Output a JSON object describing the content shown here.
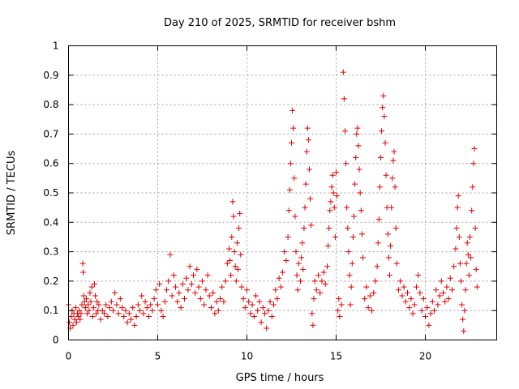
{
  "chart_data": {
    "type": "scatter",
    "title": "Day 210 of 2025, SRMTID for receiver bshm",
    "xlabel": "GPS time / hours",
    "ylabel": "SRMTID / TECUs",
    "xlim": [
      0,
      24
    ],
    "ylim": [
      0,
      1
    ],
    "x_ticks": [
      0,
      5,
      10,
      15,
      20
    ],
    "x_tick_labels": [
      "0",
      "5",
      "10",
      "15",
      "20"
    ],
    "y_ticks": [
      0,
      0.1,
      0.2,
      0.3,
      0.4,
      0.5,
      0.6,
      0.7,
      0.8,
      0.9,
      1
    ],
    "y_tick_labels": [
      "0",
      "0.1",
      "0.2",
      "0.3",
      "0.4",
      "0.5",
      "0.6",
      "0.7",
      "0.8",
      "0.9",
      "1"
    ],
    "grid": true,
    "marker": "+",
    "color": "#e00000",
    "series": [
      {
        "name": "bshm",
        "points": [
          [
            0.0,
            0.12
          ],
          [
            0.05,
            0.06
          ],
          [
            0.1,
            0.04
          ],
          [
            0.15,
            0.08
          ],
          [
            0.2,
            0.1
          ],
          [
            0.25,
            0.05
          ],
          [
            0.3,
            0.09
          ],
          [
            0.35,
            0.07
          ],
          [
            0.4,
            0.11
          ],
          [
            0.45,
            0.06
          ],
          [
            0.5,
            0.09
          ],
          [
            0.55,
            0.08
          ],
          [
            0.6,
            0.1
          ],
          [
            0.65,
            0.07
          ],
          [
            0.7,
            0.09
          ],
          [
            0.75,
            0.12
          ],
          [
            0.8,
            0.26
          ],
          [
            0.82,
            0.23
          ],
          [
            0.85,
            0.15
          ],
          [
            0.9,
            0.13
          ],
          [
            0.95,
            0.11
          ],
          [
            1.0,
            0.14
          ],
          [
            1.05,
            0.09
          ],
          [
            1.1,
            0.12
          ],
          [
            1.15,
            0.1
          ],
          [
            1.2,
            0.16
          ],
          [
            1.25,
            0.13
          ],
          [
            1.3,
            0.18
          ],
          [
            1.35,
            0.08
          ],
          [
            1.4,
            0.11
          ],
          [
            1.45,
            0.19
          ],
          [
            1.5,
            0.15
          ],
          [
            1.55,
            0.09
          ],
          [
            1.6,
            0.13
          ],
          [
            1.65,
            0.1
          ],
          [
            1.7,
            0.12
          ],
          [
            1.8,
            0.07
          ],
          [
            1.9,
            0.1
          ],
          [
            2.0,
            0.09
          ],
          [
            2.1,
            0.12
          ],
          [
            2.2,
            0.08
          ],
          [
            2.3,
            0.11
          ],
          [
            2.4,
            0.13
          ],
          [
            2.5,
            0.1
          ],
          [
            2.6,
            0.16
          ],
          [
            2.7,
            0.12
          ],
          [
            2.8,
            0.09
          ],
          [
            2.9,
            0.14
          ],
          [
            3.0,
            0.11
          ],
          [
            3.1,
            0.08
          ],
          [
            3.2,
            0.1
          ],
          [
            3.3,
            0.06
          ],
          [
            3.4,
            0.09
          ],
          [
            3.5,
            0.07
          ],
          [
            3.6,
            0.11
          ],
          [
            3.7,
            0.05
          ],
          [
            3.8,
            0.08
          ],
          [
            3.9,
            0.12
          ],
          [
            4.0,
            0.1
          ],
          [
            4.1,
            0.15
          ],
          [
            4.2,
            0.09
          ],
          [
            4.3,
            0.13
          ],
          [
            4.4,
            0.11
          ],
          [
            4.5,
            0.08
          ],
          [
            4.6,
            0.12
          ],
          [
            4.7,
            0.1
          ],
          [
            4.8,
            0.14
          ],
          [
            4.9,
            0.17
          ],
          [
            5.0,
            0.12
          ],
          [
            5.1,
            0.19
          ],
          [
            5.2,
            0.1
          ],
          [
            5.3,
            0.08
          ],
          [
            5.4,
            0.13
          ],
          [
            5.5,
            0.17
          ],
          [
            5.6,
            0.2
          ],
          [
            5.7,
            0.29
          ],
          [
            5.8,
            0.15
          ],
          [
            5.9,
            0.22
          ],
          [
            6.0,
            0.18
          ],
          [
            6.1,
            0.13
          ],
          [
            6.2,
            0.16
          ],
          [
            6.3,
            0.11
          ],
          [
            6.4,
            0.19
          ],
          [
            6.5,
            0.14
          ],
          [
            6.6,
            0.21
          ],
          [
            6.7,
            0.17
          ],
          [
            6.8,
            0.25
          ],
          [
            6.9,
            0.19
          ],
          [
            7.0,
            0.22
          ],
          [
            7.1,
            0.16
          ],
          [
            7.2,
            0.24
          ],
          [
            7.3,
            0.18
          ],
          [
            7.4,
            0.14
          ],
          [
            7.5,
            0.2
          ],
          [
            7.6,
            0.12
          ],
          [
            7.7,
            0.17
          ],
          [
            7.8,
            0.22
          ],
          [
            7.9,
            0.15
          ],
          [
            8.0,
            0.11
          ],
          [
            8.1,
            0.16
          ],
          [
            8.2,
            0.09
          ],
          [
            8.3,
            0.13
          ],
          [
            8.4,
            0.1
          ],
          [
            8.5,
            0.14
          ],
          [
            8.6,
            0.18
          ],
          [
            8.7,
            0.13
          ],
          [
            8.8,
            0.2
          ],
          [
            8.9,
            0.26
          ],
          [
            9.0,
            0.31
          ],
          [
            9.05,
            0.27
          ],
          [
            9.1,
            0.22
          ],
          [
            9.15,
            0.35
          ],
          [
            9.2,
            0.47
          ],
          [
            9.25,
            0.42
          ],
          [
            9.3,
            0.3
          ],
          [
            9.35,
            0.25
          ],
          [
            9.4,
            0.2
          ],
          [
            9.45,
            0.33
          ],
          [
            9.5,
            0.24
          ],
          [
            9.55,
            0.38
          ],
          [
            9.6,
            0.43
          ],
          [
            9.65,
            0.29
          ],
          [
            9.7,
            0.18
          ],
          [
            9.8,
            0.14
          ],
          [
            9.9,
            0.11
          ],
          [
            10.0,
            0.17
          ],
          [
            10.1,
            0.13
          ],
          [
            10.2,
            0.09
          ],
          [
            10.3,
            0.12
          ],
          [
            10.4,
            0.08
          ],
          [
            10.5,
            0.15
          ],
          [
            10.6,
            0.1
          ],
          [
            10.7,
            0.13
          ],
          [
            10.8,
            0.06
          ],
          [
            10.9,
            0.11
          ],
          [
            11.0,
            0.09
          ],
          [
            11.1,
            0.04
          ],
          [
            11.2,
            0.1
          ],
          [
            11.3,
            0.13
          ],
          [
            11.4,
            0.08
          ],
          [
            11.5,
            0.12
          ],
          [
            11.6,
            0.17
          ],
          [
            11.7,
            0.14
          ],
          [
            11.8,
            0.21
          ],
          [
            11.9,
            0.18
          ],
          [
            12.0,
            0.23
          ],
          [
            12.1,
            0.3
          ],
          [
            12.2,
            0.27
          ],
          [
            12.3,
            0.35
          ],
          [
            12.35,
            0.44
          ],
          [
            12.4,
            0.51
          ],
          [
            12.45,
            0.6
          ],
          [
            12.5,
            0.67
          ],
          [
            12.55,
            0.78
          ],
          [
            12.6,
            0.72
          ],
          [
            12.65,
            0.55
          ],
          [
            12.7,
            0.42
          ],
          [
            12.75,
            0.3
          ],
          [
            12.8,
            0.22
          ],
          [
            12.85,
            0.17
          ],
          [
            12.9,
            0.26
          ],
          [
            13.0,
            0.2
          ],
          [
            13.05,
            0.28
          ],
          [
            13.1,
            0.33
          ],
          [
            13.15,
            0.24
          ],
          [
            13.2,
            0.38
          ],
          [
            13.25,
            0.45
          ],
          [
            13.3,
            0.53
          ],
          [
            13.35,
            0.64
          ],
          [
            13.4,
            0.72
          ],
          [
            13.45,
            0.68
          ],
          [
            13.5,
            0.58
          ],
          [
            13.55,
            0.48
          ],
          [
            13.6,
            0.39
          ],
          [
            13.65,
            0.09
          ],
          [
            13.7,
            0.05
          ],
          [
            13.75,
            0.14
          ],
          [
            13.8,
            0.2
          ],
          [
            13.9,
            0.17
          ],
          [
            14.0,
            0.22
          ],
          [
            14.1,
            0.16
          ],
          [
            14.2,
            0.2
          ],
          [
            14.3,
            0.23
          ],
          [
            14.4,
            0.19
          ],
          [
            14.5,
            0.25
          ],
          [
            14.55,
            0.32
          ],
          [
            14.6,
            0.38
          ],
          [
            14.65,
            0.44
          ],
          [
            14.7,
            0.47
          ],
          [
            14.75,
            0.52
          ],
          [
            14.8,
            0.56
          ],
          [
            14.85,
            0.5
          ],
          [
            14.9,
            0.45
          ],
          [
            14.95,
            0.35
          ],
          [
            15.0,
            0.57
          ],
          [
            15.05,
            0.49
          ],
          [
            15.1,
            0.1
          ],
          [
            15.15,
            0.14
          ],
          [
            15.2,
            0.08
          ],
          [
            15.3,
            0.12
          ],
          [
            15.4,
            0.91
          ],
          [
            15.45,
            0.82
          ],
          [
            15.5,
            0.71
          ],
          [
            15.55,
            0.6
          ],
          [
            15.6,
            0.45
          ],
          [
            15.65,
            0.38
          ],
          [
            15.7,
            0.3
          ],
          [
            15.75,
            0.22
          ],
          [
            15.8,
            0.12
          ],
          [
            15.85,
            0.18
          ],
          [
            15.9,
            0.26
          ],
          [
            15.95,
            0.35
          ],
          [
            16.0,
            0.42
          ],
          [
            16.05,
            0.53
          ],
          [
            16.1,
            0.62
          ],
          [
            16.15,
            0.7
          ],
          [
            16.2,
            0.72
          ],
          [
            16.25,
            0.66
          ],
          [
            16.3,
            0.58
          ],
          [
            16.35,
            0.5
          ],
          [
            16.4,
            0.44
          ],
          [
            16.45,
            0.36
          ],
          [
            16.5,
            0.28
          ],
          [
            16.6,
            0.14
          ],
          [
            16.7,
            0.18
          ],
          [
            16.8,
            0.11
          ],
          [
            16.9,
            0.15
          ],
          [
            17.0,
            0.1
          ],
          [
            17.1,
            0.16
          ],
          [
            17.2,
            0.2
          ],
          [
            17.3,
            0.25
          ],
          [
            17.35,
            0.33
          ],
          [
            17.4,
            0.41
          ],
          [
            17.45,
            0.52
          ],
          [
            17.5,
            0.62
          ],
          [
            17.55,
            0.71
          ],
          [
            17.6,
            0.79
          ],
          [
            17.65,
            0.83
          ],
          [
            17.7,
            0.76
          ],
          [
            17.75,
            0.67
          ],
          [
            17.8,
            0.56
          ],
          [
            17.85,
            0.45
          ],
          [
            17.9,
            0.36
          ],
          [
            17.95,
            0.28
          ],
          [
            18.0,
            0.22
          ],
          [
            18.05,
            0.32
          ],
          [
            18.1,
            0.45
          ],
          [
            18.15,
            0.55
          ],
          [
            18.2,
            0.61
          ],
          [
            18.25,
            0.64
          ],
          [
            18.3,
            0.52
          ],
          [
            18.35,
            0.38
          ],
          [
            18.4,
            0.26
          ],
          [
            18.5,
            0.17
          ],
          [
            18.6,
            0.2
          ],
          [
            18.7,
            0.15
          ],
          [
            18.8,
            0.18
          ],
          [
            18.9,
            0.13
          ],
          [
            19.0,
            0.16
          ],
          [
            19.1,
            0.11
          ],
          [
            19.2,
            0.14
          ],
          [
            19.3,
            0.09
          ],
          [
            19.4,
            0.12
          ],
          [
            19.5,
            0.18
          ],
          [
            19.6,
            0.22
          ],
          [
            19.7,
            0.16
          ],
          [
            19.8,
            0.1
          ],
          [
            19.9,
            0.14
          ],
          [
            20.0,
            0.08
          ],
          [
            20.1,
            0.11
          ],
          [
            20.2,
            0.05
          ],
          [
            20.3,
            0.09
          ],
          [
            20.4,
            0.13
          ],
          [
            20.5,
            0.1
          ],
          [
            20.6,
            0.17
          ],
          [
            20.7,
            0.12
          ],
          [
            20.8,
            0.15
          ],
          [
            20.9,
            0.2
          ],
          [
            21.0,
            0.16
          ],
          [
            21.1,
            0.13
          ],
          [
            21.2,
            0.18
          ],
          [
            21.3,
            0.14
          ],
          [
            21.4,
            0.21
          ],
          [
            21.5,
            0.17
          ],
          [
            21.6,
            0.25
          ],
          [
            21.7,
            0.31
          ],
          [
            21.75,
            0.38
          ],
          [
            21.8,
            0.45
          ],
          [
            21.85,
            0.49
          ],
          [
            21.9,
            0.35
          ],
          [
            21.95,
            0.26
          ],
          [
            22.0,
            0.2
          ],
          [
            22.05,
            0.12
          ],
          [
            22.1,
            0.07
          ],
          [
            22.15,
            0.03
          ],
          [
            22.2,
            0.1
          ],
          [
            22.25,
            0.17
          ],
          [
            22.3,
            0.26
          ],
          [
            22.35,
            0.33
          ],
          [
            22.4,
            0.29
          ],
          [
            22.45,
            0.22
          ],
          [
            22.5,
            0.35
          ],
          [
            22.55,
            0.28
          ],
          [
            22.6,
            0.44
          ],
          [
            22.65,
            0.52
          ],
          [
            22.7,
            0.6
          ],
          [
            22.75,
            0.65
          ],
          [
            22.8,
            0.38
          ],
          [
            22.85,
            0.24
          ],
          [
            22.9,
            0.18
          ]
        ]
      }
    ]
  }
}
